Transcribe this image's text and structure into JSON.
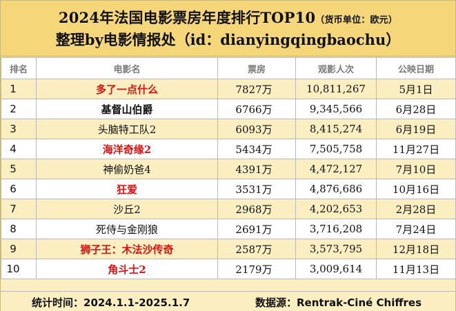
{
  "header": {
    "title": "2024年法国电影票房年度排行TOP10",
    "unit": "（货币单位：欧元）",
    "subtitle": "整理by电影情报处（id：dianyingqingbaochu）"
  },
  "table": {
    "columns": [
      "排名",
      "电影名",
      "票房",
      "观影人次",
      "公映日期"
    ],
    "rows": [
      {
        "rank": "1",
        "title": "多了一点什么",
        "box": "7827万",
        "viewers": "10,811,267",
        "date": "5月1日",
        "style": "red"
      },
      {
        "rank": "2",
        "title": "基督山伯爵",
        "box": "6766万",
        "viewers": "9,345,566",
        "date": "6月28日",
        "style": "bold"
      },
      {
        "rank": "3",
        "title": "头脑特工队2",
        "box": "6093万",
        "viewers": "8,415,274",
        "date": "6月19日",
        "style": "plain"
      },
      {
        "rank": "4",
        "title": "海洋奇缘2",
        "box": "5434万",
        "viewers": "7,505,758",
        "date": "11月27日",
        "style": "red"
      },
      {
        "rank": "5",
        "title": "神偷奶爸4",
        "box": "4391万",
        "viewers": "4,472,127",
        "date": "7月10日",
        "style": "plain"
      },
      {
        "rank": "6",
        "title": "狂爱",
        "box": "3531万",
        "viewers": "4,876,686",
        "date": "10月16日",
        "style": "red"
      },
      {
        "rank": "7",
        "title": "沙丘2",
        "box": "2968万",
        "viewers": "4,202,653",
        "date": "2月28日",
        "style": "plain"
      },
      {
        "rank": "8",
        "title": "死侍与金刚狼",
        "box": "2691万",
        "viewers": "3,716,208",
        "date": "7月24日",
        "style": "plain"
      },
      {
        "rank": "9",
        "title": "狮子王：木法沙传奇",
        "box": "2587万",
        "viewers": "3,573,795",
        "date": "12月18日",
        "style": "red"
      },
      {
        "rank": "10",
        "title": "角斗士2",
        "box": "2179万",
        "viewers": "3,009,614",
        "date": "11月13日",
        "style": "red"
      }
    ]
  },
  "footer": {
    "period": "统计时间：2024.1.1-2025.1.7",
    "source": "数据源：Rentrak-Ciné Chiffres"
  },
  "colors": {
    "title_bg": "#f5d77a",
    "stripe_bg": "#fbeec0",
    "highlight_text": "#e01010"
  }
}
